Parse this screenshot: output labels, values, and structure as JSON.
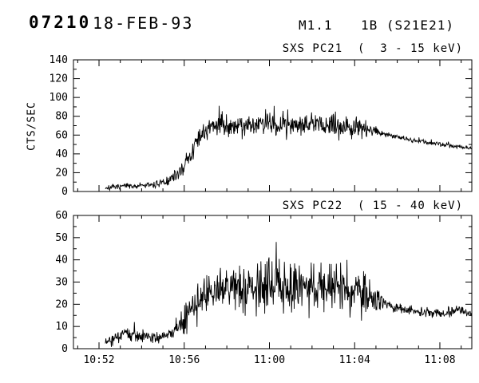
{
  "header": {
    "event_id": "07210",
    "date": "18-FEB-93",
    "xray_class": "M1.1",
    "importance": "1B (S21E21)"
  },
  "colors": {
    "foreground": "#000000",
    "background": "#ffffff"
  },
  "chart_data": [
    {
      "type": "line",
      "title": "SXS PC21  (  3 - 15 keV)",
      "ylabel": "CTS/SEC",
      "ylim": [
        0,
        140
      ],
      "y_major": [
        0,
        20,
        40,
        60,
        80,
        100,
        120,
        140
      ],
      "y_labels": [
        "0",
        "20",
        "40",
        "60",
        "80",
        "100",
        "120",
        "140"
      ],
      "y_minor_step": 10,
      "xlim": [
        50.8,
        69.5
      ],
      "x_major": [
        52,
        56,
        60,
        64,
        68
      ],
      "x_labels": [
        "10:52",
        "10:56",
        "11:00",
        "11:04",
        "11:08"
      ],
      "x_minor_step": 1,
      "show_x_labels": false,
      "grid": false,
      "seed": 7,
      "envelope_t_mean_noise": [
        [
          52.3,
          4,
          3
        ],
        [
          53.5,
          6,
          3
        ],
        [
          54.5,
          7,
          3
        ],
        [
          55.2,
          10,
          5
        ],
        [
          55.8,
          20,
          7
        ],
        [
          56.3,
          40,
          12
        ],
        [
          56.8,
          60,
          12
        ],
        [
          57.3,
          68,
          10
        ],
        [
          57.8,
          72,
          13
        ],
        [
          58.5,
          70,
          12
        ],
        [
          59.3,
          72,
          12
        ],
        [
          60.0,
          73,
          12
        ],
        [
          60.8,
          70,
          11
        ],
        [
          61.5,
          72,
          11
        ],
        [
          62.3,
          71,
          11
        ],
        [
          63.0,
          70,
          11
        ],
        [
          63.8,
          69,
          11
        ],
        [
          64.5,
          67,
          10
        ],
        [
          65.0,
          64,
          7
        ],
        [
          65.4,
          61,
          3
        ],
        [
          66.0,
          58,
          2.5
        ],
        [
          66.8,
          54,
          2.5
        ],
        [
          67.5,
          52,
          2.5
        ],
        [
          68.2,
          50,
          2.5
        ],
        [
          69.0,
          47,
          2.5
        ],
        [
          69.5,
          46,
          2.5
        ]
      ]
    },
    {
      "type": "line",
      "title": "SXS PC22  ( 15 - 40 keV)",
      "ylabel": "",
      "ylim": [
        0,
        60
      ],
      "y_major": [
        0,
        10,
        20,
        30,
        40,
        50,
        60
      ],
      "y_labels": [
        "0",
        "10",
        "20",
        "30",
        "40",
        "50",
        "60"
      ],
      "y_minor_step": 5,
      "xlim": [
        50.8,
        69.5
      ],
      "x_major": [
        52,
        56,
        60,
        64,
        68
      ],
      "x_labels": [
        "10:52",
        "10:56",
        "11:00",
        "11:04",
        "11:08"
      ],
      "x_minor_step": 1,
      "show_x_labels": true,
      "grid": false,
      "seed": 21,
      "envelope_t_mean_noise": [
        [
          52.3,
          3,
          2
        ],
        [
          52.8,
          5,
          3
        ],
        [
          53.3,
          7,
          3
        ],
        [
          53.8,
          6,
          3
        ],
        [
          54.5,
          5,
          2.5
        ],
        [
          55.2,
          6,
          3
        ],
        [
          55.8,
          10,
          5
        ],
        [
          56.3,
          17,
          7
        ],
        [
          56.8,
          22,
          8
        ],
        [
          57.3,
          25,
          9
        ],
        [
          57.8,
          27,
          10
        ],
        [
          58.4,
          27,
          11
        ],
        [
          59.0,
          26,
          10
        ],
        [
          59.6,
          28,
          10
        ],
        [
          60.3,
          29,
          11
        ],
        [
          61.0,
          27,
          10
        ],
        [
          61.7,
          28,
          10
        ],
        [
          62.4,
          27,
          10
        ],
        [
          63.1,
          27,
          10
        ],
        [
          63.8,
          26,
          10
        ],
        [
          64.4,
          25,
          9
        ],
        [
          65.0,
          23,
          6
        ],
        [
          65.4,
          20,
          3
        ],
        [
          66.0,
          18,
          2
        ],
        [
          66.8,
          17,
          2
        ],
        [
          67.5,
          16,
          2
        ],
        [
          68.2,
          16,
          2
        ],
        [
          68.8,
          17.5,
          2
        ],
        [
          69.5,
          16,
          2
        ]
      ]
    }
  ]
}
